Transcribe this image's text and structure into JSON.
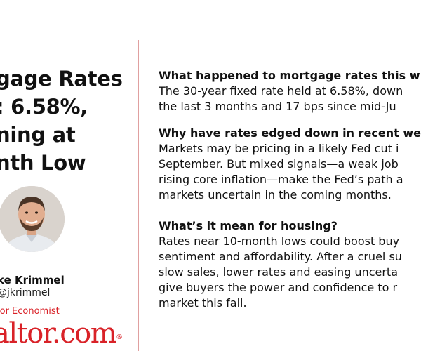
{
  "headline": {
    "lines": [
      "gage Rates",
      ": 6.58%,",
      "ning at",
      "nth Low"
    ]
  },
  "author": {
    "name": "ke Krimmel",
    "handle": "@jkrimmel",
    "title": "ior Economist"
  },
  "brand": {
    "text": "altor.com",
    "mark": "®"
  },
  "sections": [
    {
      "question": "What happened to mortgage rates this w",
      "answer_lines": [
        "The 30-year fixed rate held at 6.58%, down",
        "the last 3 months and 17 bps since mid-Ju"
      ]
    },
    {
      "question": "Why have rates edged down in recent we",
      "answer_lines": [
        "Markets may be pricing in a likely Fed cut i",
        "September. But mixed signals—a weak job",
        "rising core inflation—make the Fed’s path a",
        "markets uncertain in the coming months."
      ]
    },
    {
      "question": "What’s it mean for housing?",
      "answer_lines": [
        "Rates near 10-month lows could boost buy",
        "sentiment and affordability. After a cruel su",
        "slow sales, lower rates and easing uncerta",
        "give buyers the power and confidence to r",
        "market this fall."
      ]
    }
  ],
  "colors": {
    "brand_red": "#d92228",
    "text": "#111111"
  }
}
